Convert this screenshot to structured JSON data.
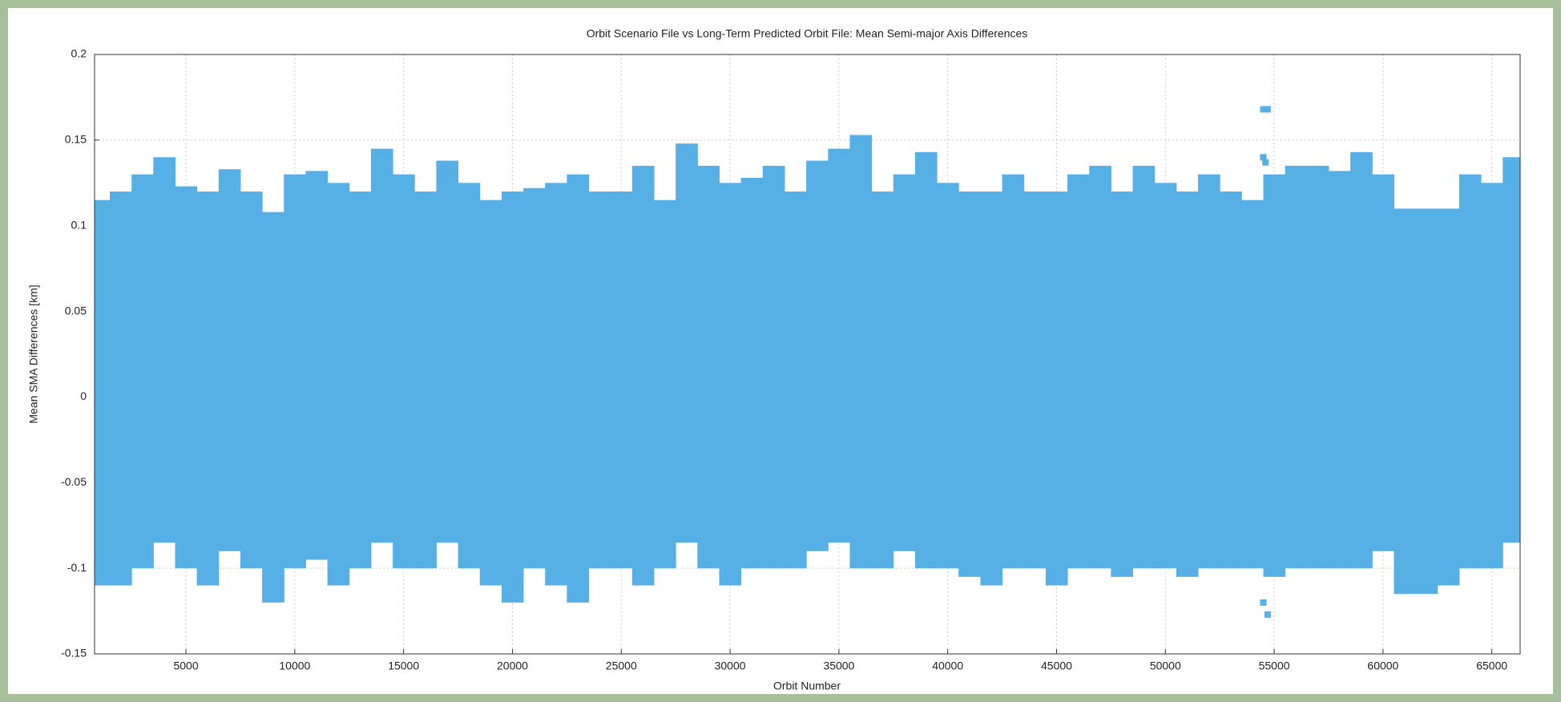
{
  "chart_data": {
    "type": "band",
    "title": "Orbit Scenario File vs Long-Term Predicted Orbit File: Mean Semi-major Axis Differences",
    "x_label": "Orbit Number",
    "y_label": "Mean SMA Differences [km]",
    "color": "#56b0e6",
    "grid": true,
    "xlim": [
      800,
      66300
    ],
    "ylim": [
      -0.15,
      0.2
    ],
    "xticks": [
      5000,
      10000,
      15000,
      20000,
      25000,
      30000,
      35000,
      40000,
      45000,
      50000,
      55000,
      60000,
      65000
    ],
    "yticks": [
      -0.15,
      -0.1,
      -0.05,
      0,
      0.05,
      0.1,
      0.15,
      0.2
    ],
    "x": [
      1000,
      2000,
      3000,
      4000,
      5000,
      6000,
      7000,
      8000,
      9000,
      10000,
      11000,
      12000,
      13000,
      14000,
      15000,
      16000,
      17000,
      18000,
      19000,
      20000,
      21000,
      22000,
      23000,
      24000,
      25000,
      26000,
      27000,
      28000,
      29000,
      30000,
      31000,
      32000,
      33000,
      34000,
      35000,
      36000,
      37000,
      38000,
      39000,
      40000,
      41000,
      42000,
      43000,
      44000,
      45000,
      46000,
      47000,
      48000,
      49000,
      50000,
      51000,
      52000,
      53000,
      54000,
      55000,
      56000,
      57000,
      58000,
      59000,
      60000,
      61000,
      62000,
      63000,
      64000,
      65000,
      66000
    ],
    "upper": [
      0.115,
      0.12,
      0.13,
      0.14,
      0.123,
      0.12,
      0.133,
      0.12,
      0.108,
      0.13,
      0.132,
      0.125,
      0.12,
      0.145,
      0.13,
      0.12,
      0.138,
      0.125,
      0.115,
      0.12,
      0.122,
      0.125,
      0.13,
      0.12,
      0.12,
      0.135,
      0.115,
      0.148,
      0.135,
      0.125,
      0.128,
      0.135,
      0.12,
      0.138,
      0.145,
      0.153,
      0.12,
      0.13,
      0.143,
      0.125,
      0.12,
      0.12,
      0.13,
      0.12,
      0.12,
      0.13,
      0.135,
      0.12,
      0.135,
      0.125,
      0.12,
      0.13,
      0.12,
      0.115,
      0.13,
      0.135,
      0.135,
      0.132,
      0.143,
      0.13,
      0.11,
      0.11,
      0.11,
      0.13,
      0.125,
      0.14
    ],
    "lower": [
      -0.11,
      -0.11,
      -0.1,
      -0.085,
      -0.1,
      -0.11,
      -0.09,
      -0.1,
      -0.12,
      -0.1,
      -0.095,
      -0.11,
      -0.1,
      -0.085,
      -0.1,
      -0.1,
      -0.085,
      -0.1,
      -0.11,
      -0.12,
      -0.1,
      -0.11,
      -0.12,
      -0.1,
      -0.1,
      -0.11,
      -0.1,
      -0.085,
      -0.1,
      -0.11,
      -0.1,
      -0.1,
      -0.1,
      -0.09,
      -0.085,
      -0.1,
      -0.1,
      -0.09,
      -0.1,
      -0.1,
      -0.105,
      -0.11,
      -0.1,
      -0.1,
      -0.11,
      -0.1,
      -0.1,
      -0.105,
      -0.1,
      -0.1,
      -0.105,
      -0.1,
      -0.1,
      -0.1,
      -0.105,
      -0.1,
      -0.1,
      -0.1,
      -0.1,
      -0.09,
      -0.115,
      -0.115,
      -0.11,
      -0.1,
      -0.1,
      -0.085
    ],
    "outliers": {
      "x": [
        54500,
        54700,
        54500,
        54600,
        54500,
        54700
      ],
      "y": [
        0.168,
        0.168,
        0.14,
        0.137,
        -0.12,
        -0.127
      ]
    }
  }
}
